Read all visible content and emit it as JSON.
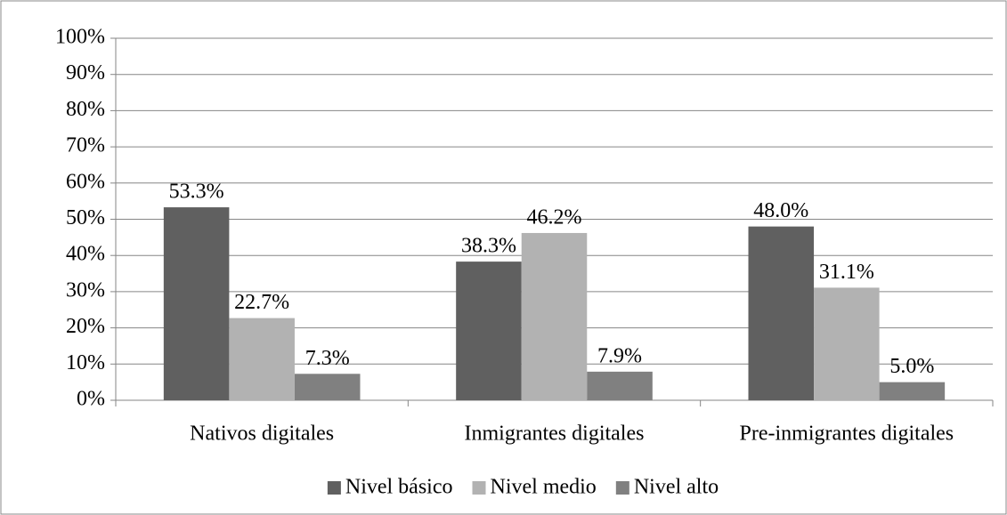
{
  "chart_data": {
    "type": "bar",
    "categories": [
      "Nativos digitales",
      "Inmigrantes digitales",
      "Pre-inmigrantes digitales"
    ],
    "series": [
      {
        "name": "Nivel básico",
        "color": "#606060",
        "values": [
          53.3,
          38.3,
          48.0
        ],
        "value_labels": [
          "53.3%",
          "38.3%",
          "48.0%"
        ]
      },
      {
        "name": "Nivel medio",
        "color": "#b2b2b2",
        "values": [
          22.7,
          46.2,
          31.1
        ],
        "value_labels": [
          "22.7%",
          "46.2%",
          "31.1%"
        ]
      },
      {
        "name": "Nivel alto",
        "color": "#808080",
        "values": [
          7.3,
          7.9,
          5.0
        ],
        "value_labels": [
          "7.3%",
          "7.9%",
          "5.0%"
        ]
      }
    ],
    "ylim": [
      0,
      100
    ],
    "yticks": [
      {
        "value": 0,
        "label": "0%"
      },
      {
        "value": 10,
        "label": "10%"
      },
      {
        "value": 20,
        "label": "20%"
      },
      {
        "value": 30,
        "label": "30%"
      },
      {
        "value": 40,
        "label": "40%"
      },
      {
        "value": 50,
        "label": "50%"
      },
      {
        "value": 60,
        "label": "60%"
      },
      {
        "value": 70,
        "label": "70%"
      },
      {
        "value": 80,
        "label": "80%"
      },
      {
        "value": 90,
        "label": "90%"
      },
      {
        "value": 100,
        "label": "100%"
      }
    ],
    "grid": true,
    "legend": "bottom"
  }
}
